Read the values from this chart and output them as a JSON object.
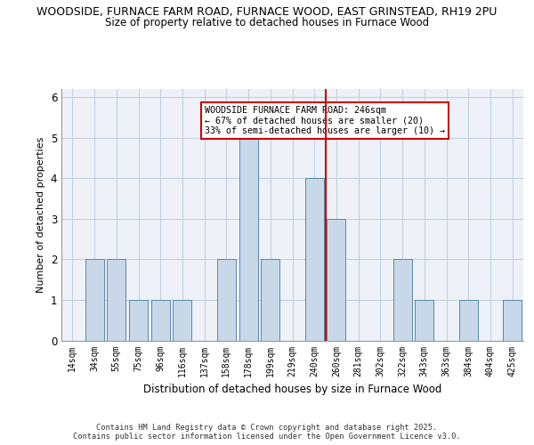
{
  "title_line1": "WOODSIDE, FURNACE FARM ROAD, FURNACE WOOD, EAST GRINSTEAD, RH19 2PU",
  "title_line2": "Size of property relative to detached houses in Furnace Wood",
  "xlabel": "Distribution of detached houses by size in Furnace Wood",
  "ylabel": "Number of detached properties",
  "categories": [
    "14sqm",
    "34sqm",
    "55sqm",
    "75sqm",
    "96sqm",
    "116sqm",
    "137sqm",
    "158sqm",
    "178sqm",
    "199sqm",
    "219sqm",
    "240sqm",
    "260sqm",
    "281sqm",
    "302sqm",
    "322sqm",
    "343sqm",
    "363sqm",
    "384sqm",
    "404sqm",
    "425sqm"
  ],
  "values": [
    0,
    2,
    2,
    1,
    1,
    1,
    0,
    2,
    5,
    2,
    0,
    4,
    3,
    0,
    0,
    2,
    1,
    0,
    1,
    0,
    1
  ],
  "bar_color": "#c8d8e8",
  "bar_edge_color": "#5588aa",
  "grid_color": "#c0d0e0",
  "bg_color": "#eef2f8",
  "vline_color": "#cc0000",
  "annotation_text": "WOODSIDE FURNACE FARM ROAD: 246sqm\n← 67% of detached houses are smaller (20)\n33% of semi-detached houses are larger (10) →",
  "annotation_box_edgecolor": "#cc0000",
  "annotation_box_facecolor": "#ffffff",
  "footer_text": "Contains HM Land Registry data © Crown copyright and database right 2025.\nContains public sector information licensed under the Open Government Licence v3.0.",
  "ylim": [
    0,
    6.2
  ],
  "yticks": [
    0,
    1,
    2,
    3,
    4,
    5,
    6
  ]
}
